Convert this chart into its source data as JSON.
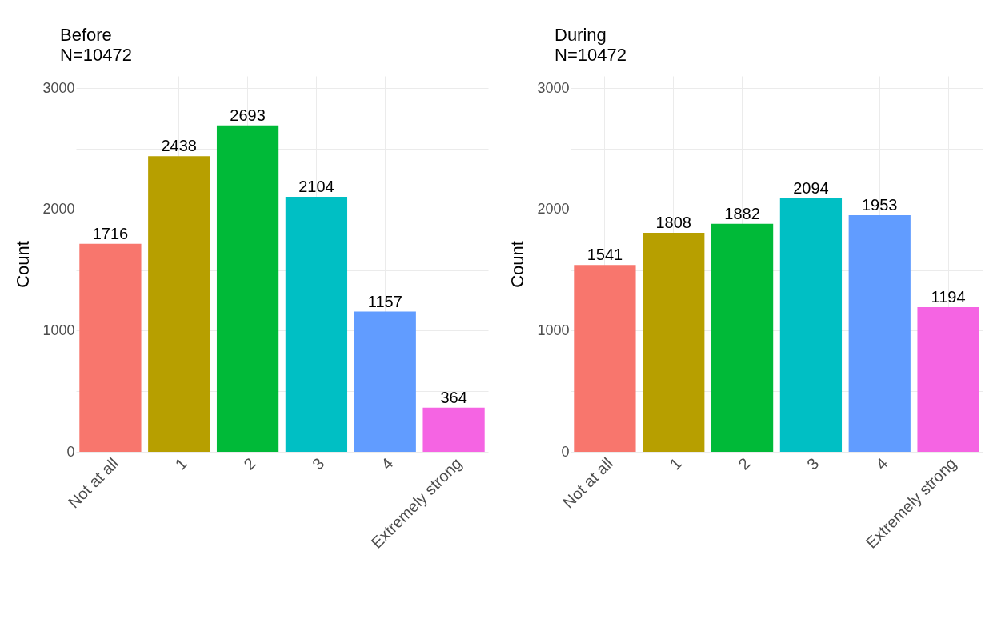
{
  "chart_data": [
    {
      "type": "bar",
      "title": "Before",
      "subtitle": "N=10472",
      "ylabel": "Count",
      "categories": [
        "Not at all",
        "1",
        "2",
        "3",
        "4",
        "Extremely strong"
      ],
      "values": [
        1716,
        2438,
        2693,
        2104,
        1157,
        364
      ],
      "colors": [
        "#f8766d",
        "#b79f00",
        "#00ba38",
        "#00bfc4",
        "#619cff",
        "#f564e3"
      ],
      "ylim": [
        0,
        3100
      ],
      "yticks": [
        0,
        {
          "value": 500,
          "label": null
        },
        1000,
        {
          "value": 1500,
          "label": null
        },
        2000,
        {
          "value": 2500,
          "label": null
        },
        3000
      ],
      "grid": true,
      "data_labels": true
    },
    {
      "type": "bar",
      "title": "During",
      "subtitle": "N=10472",
      "ylabel": "Count",
      "categories": [
        "Not at all",
        "1",
        "2",
        "3",
        "4",
        "Extremely strong"
      ],
      "values": [
        1541,
        1808,
        1882,
        2094,
        1953,
        1194
      ],
      "colors": [
        "#f8766d",
        "#b79f00",
        "#00ba38",
        "#00bfc4",
        "#619cff",
        "#f564e3"
      ],
      "ylim": [
        0,
        3100
      ],
      "yticks": [
        0,
        {
          "value": 500,
          "label": null
        },
        1000,
        {
          "value": 1500,
          "label": null
        },
        2000,
        {
          "value": 2500,
          "label": null
        },
        3000
      ],
      "grid": true,
      "data_labels": true
    }
  ]
}
